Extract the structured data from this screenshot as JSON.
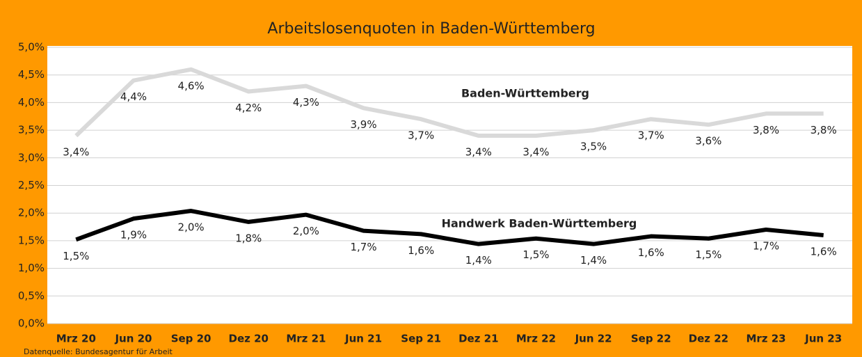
{
  "chart_data": {
    "type": "line",
    "title": "Arbeitslosenquoten in Baden-Württemberg",
    "source": "Datenquelle: Bundesagentur für Arbeit",
    "categories": [
      "Mrz 20",
      "Jun 20",
      "Sep 20",
      "Dez 20",
      "Mrz 21",
      "Jun 21",
      "Sep 21",
      "Dez 21",
      "Mrz 22",
      "Jun 22",
      "Sep 22",
      "Dez 22",
      "Mrz 23",
      "Jun 23"
    ],
    "series": [
      {
        "name": "Baden-Württemberg",
        "color": "#d9d9d9",
        "values": [
          3.4,
          4.4,
          4.6,
          4.2,
          4.3,
          3.9,
          3.7,
          3.4,
          3.4,
          3.5,
          3.7,
          3.6,
          3.8,
          3.8
        ],
        "value_labels": [
          "3,4%",
          "4,4%",
          "4,6%",
          "4,2%",
          "4,3%",
          "3,9%",
          "3,7%",
          "3,4%",
          "3,4%",
          "3,5%",
          "3,7%",
          "3,6%",
          "3,8%",
          "3,8%"
        ]
      },
      {
        "name": "Handwerk Baden-Württemberg",
        "color": "#000000",
        "values": [
          1.52,
          1.9,
          2.04,
          1.84,
          1.97,
          1.68,
          1.62,
          1.44,
          1.54,
          1.44,
          1.58,
          1.54,
          1.7,
          1.6
        ],
        "value_labels": [
          "1,5%",
          "1,9%",
          "2,0%",
          "1,8%",
          "2,0%",
          "1,7%",
          "1,6%",
          "1,4%",
          "1,5%",
          "1,4%",
          "1,6%",
          "1,5%",
          "1,7%",
          "1,6%"
        ]
      }
    ],
    "ylim": [
      0,
      5
    ],
    "yticks": [
      {
        "value": 0,
        "label": "0,0%"
      },
      {
        "value": 0.5,
        "label": "0,5%"
      },
      {
        "value": 1,
        "label": "1,0%"
      },
      {
        "value": 1.5,
        "label": "1,5%"
      },
      {
        "value": 2,
        "label": "2,0%"
      },
      {
        "value": 2.5,
        "label": "2,5%"
      },
      {
        "value": 3,
        "label": "3,0%"
      },
      {
        "value": 3.5,
        "label": "3,5%"
      },
      {
        "value": 4,
        "label": "4,0%"
      },
      {
        "value": 4.5,
        "label": "4,5%"
      },
      {
        "value": 5,
        "label": "5,0%"
      }
    ],
    "grid": true
  }
}
